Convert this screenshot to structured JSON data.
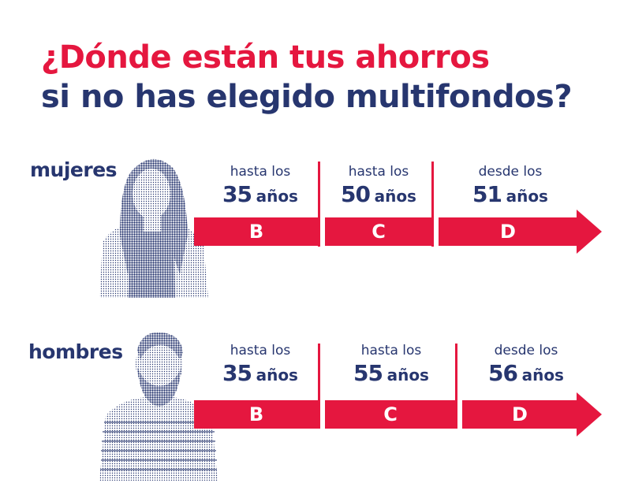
{
  "title": {
    "line1": "¿Dónde están tus ahorros",
    "line2": "si no has elegido multifondos?"
  },
  "colors": {
    "red": "#e5173f",
    "navy": "#27366f"
  },
  "groups": [
    {
      "label": "mujeres",
      "segments": [
        {
          "prefix": "hasta los",
          "age": "35",
          "unit": "años",
          "fund": "B"
        },
        {
          "prefix": "hasta los",
          "age": "50",
          "unit": "años",
          "fund": "C"
        },
        {
          "prefix": "desde los",
          "age": "51",
          "unit": "años",
          "fund": "D"
        }
      ]
    },
    {
      "label": "hombres",
      "segments": [
        {
          "prefix": "hasta los",
          "age": "35",
          "unit": "años",
          "fund": "B"
        },
        {
          "prefix": "hasta los",
          "age": "55",
          "unit": "años",
          "fund": "C"
        },
        {
          "prefix": "desde los",
          "age": "56",
          "unit": "años",
          "fund": "D"
        }
      ]
    }
  ]
}
